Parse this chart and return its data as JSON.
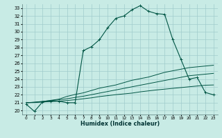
{
  "title": "",
  "xlabel": "Humidex (Indice chaleur)",
  "bg_color": "#c8ebe5",
  "grid_color": "#a0cccc",
  "line_color": "#005544",
  "xlim": [
    -0.5,
    23.5
  ],
  "ylim": [
    19.5,
    33.5
  ],
  "xticks": [
    0,
    1,
    2,
    3,
    4,
    5,
    6,
    7,
    8,
    9,
    10,
    11,
    12,
    13,
    14,
    15,
    16,
    17,
    18,
    19,
    20,
    21,
    22,
    23
  ],
  "yticks": [
    20,
    21,
    22,
    23,
    24,
    25,
    26,
    27,
    28,
    29,
    30,
    31,
    32,
    33
  ],
  "main_y": [
    20.8,
    19.9,
    21.1,
    21.2,
    21.2,
    21.0,
    21.0,
    27.6,
    28.1,
    29.0,
    30.5,
    31.7,
    32.0,
    32.8,
    33.3,
    32.6,
    32.3,
    32.2,
    29.0,
    26.5,
    24.0,
    24.2,
    22.3,
    22.0
  ],
  "line2_y": [
    21.0,
    21.05,
    21.15,
    21.3,
    21.45,
    21.8,
    22.05,
    22.25,
    22.55,
    22.85,
    23.05,
    23.25,
    23.55,
    23.85,
    24.05,
    24.25,
    24.55,
    24.85,
    25.05,
    25.25,
    25.45,
    25.55,
    25.65,
    25.75
  ],
  "line3_y": [
    21.0,
    21.07,
    21.17,
    21.27,
    21.37,
    21.5,
    21.67,
    21.82,
    22.02,
    22.22,
    22.42,
    22.62,
    22.82,
    23.02,
    23.22,
    23.42,
    23.62,
    23.82,
    24.02,
    24.22,
    24.42,
    24.52,
    24.62,
    24.72
  ],
  "line4_y": [
    21.0,
    21.02,
    21.08,
    21.15,
    21.2,
    21.28,
    21.38,
    21.5,
    21.62,
    21.78,
    21.9,
    22.02,
    22.12,
    22.22,
    22.38,
    22.5,
    22.62,
    22.72,
    22.82,
    22.92,
    23.02,
    23.12,
    23.22,
    23.25
  ]
}
